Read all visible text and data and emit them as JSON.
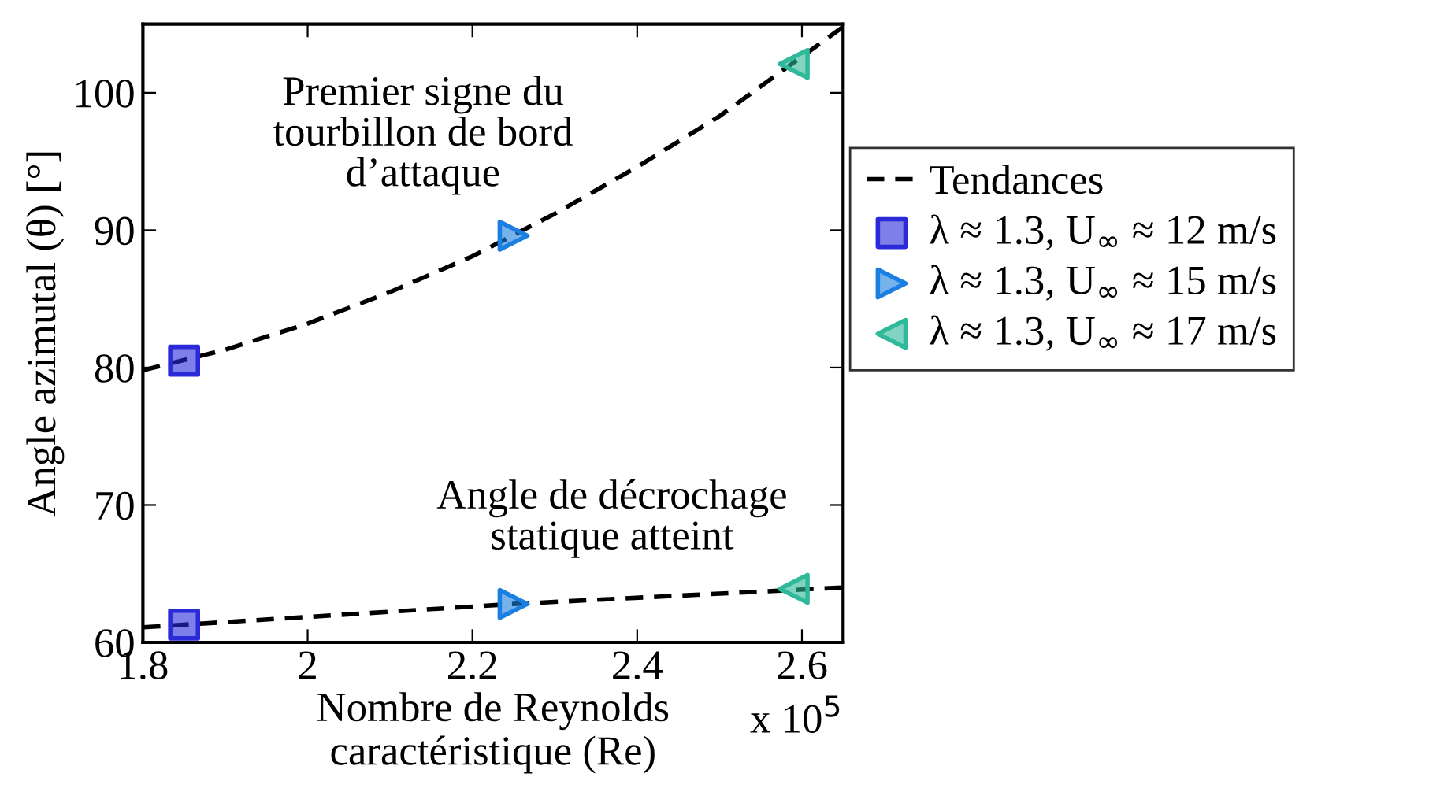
{
  "chart_data": {
    "type": "scatter",
    "xlabel": "Nombre de Reynolds\ncaractéristique (Re)",
    "ylabel": "Angle azimutal (θ) [°]",
    "xlim": [
      1.8,
      2.65
    ],
    "xticks": [
      1.8,
      2,
      2.2,
      2.4,
      2.6
    ],
    "ylim": [
      60,
      105
    ],
    "yticks": [
      60,
      70,
      80,
      90,
      100
    ],
    "grid": false,
    "legend": "right",
    "annotations": [
      "Premier signe du\ntourbillon de bord\nd’attaque",
      "Angle de décrochage\nstatique atteint",
      "x 10$^{5}$"
    ],
    "series": [
      {
        "name": "Tendances",
        "type": "line",
        "color": "#000000",
        "line_style": "dashed",
        "marker": "none",
        "x": [
          1.8,
          1.9,
          2.0,
          2.1,
          2.2,
          2.3,
          2.4,
          2.5,
          2.65
        ],
        "values": [
          79.8,
          81.3,
          83.2,
          85.5,
          88.1,
          91.2,
          94.6,
          98.3,
          104.8
        ]
      },
      {
        "type": "line",
        "color": "#000000",
        "line_style": "dashed",
        "marker": "none",
        "x": [
          1.8,
          2.25,
          2.65
        ],
        "values": [
          61.1,
          62.8,
          64.0
        ]
      },
      {
        "name": "λ ≈ 1.3, U$_{∞}$ ≈ 12 m/s",
        "color": "#2a2ad8",
        "marker": "square",
        "x": [
          1.85,
          1.85
        ],
        "values": [
          80.5,
          61.3
        ]
      },
      {
        "name": "λ ≈ 1.3, U$_{∞}$ ≈ 15 m/s",
        "color": "#1a7fe0",
        "marker": "triangle",
        "x": [
          2.25,
          2.25
        ],
        "values": [
          89.6,
          62.8
        ]
      },
      {
        "name": "λ ≈ 1.3, U$_{∞}$ ≈ 17 m/s",
        "color": "#2fb89a",
        "marker": "triangle",
        "x": [
          2.59,
          2.59
        ],
        "values": [
          102.1,
          63.9
        ]
      }
    ]
  }
}
